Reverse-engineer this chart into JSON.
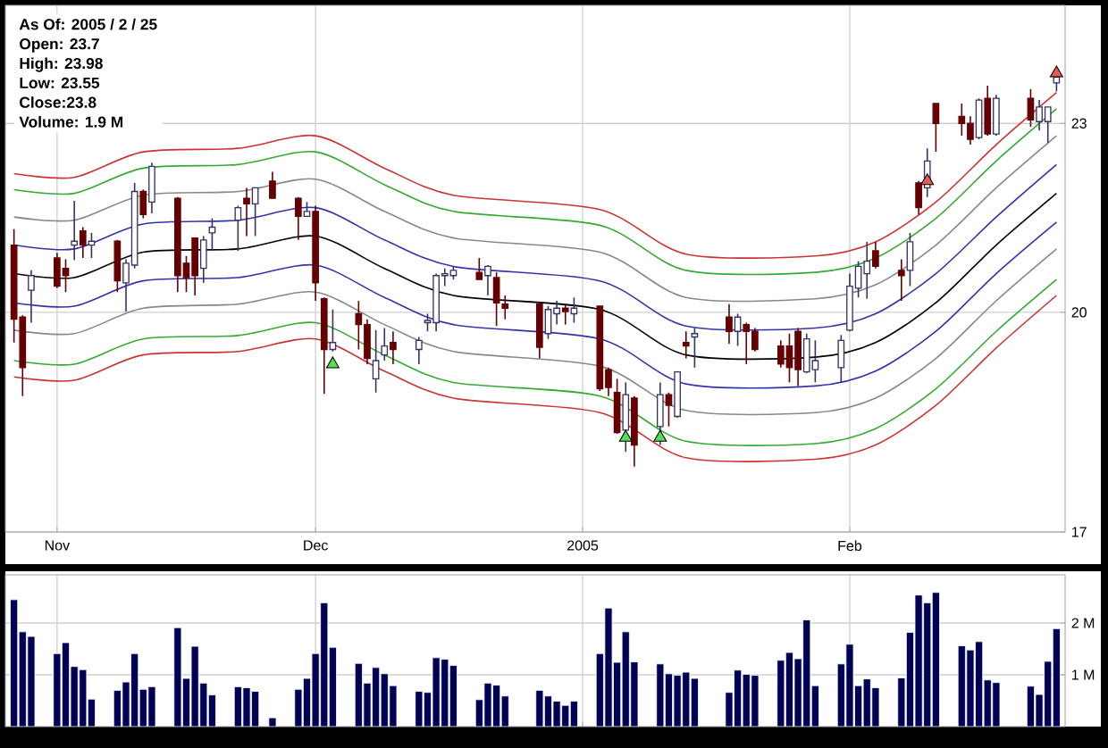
{
  "chart_data": [
    {
      "type": "candlestick",
      "x": [
        "2004-10-27",
        "2004-10-28",
        "2004-10-29",
        "2004-11-01",
        "2004-11-02",
        "2004-11-03",
        "2004-11-04",
        "2004-11-05",
        "2004-11-08",
        "2004-11-09",
        "2004-11-10",
        "2004-11-11",
        "2004-11-12",
        "2004-11-15",
        "2004-11-16",
        "2004-11-17",
        "2004-11-18",
        "2004-11-19",
        "2004-11-22",
        "2004-11-23",
        "2004-11-24",
        "2004-11-26",
        "2004-11-29",
        "2004-11-30",
        "2004-12-01",
        "2004-12-02",
        "2004-12-03",
        "2004-12-06",
        "2004-12-07",
        "2004-12-08",
        "2004-12-09",
        "2004-12-10",
        "2004-12-13",
        "2004-12-14",
        "2004-12-15",
        "2004-12-16",
        "2004-12-17",
        "2004-12-20",
        "2004-12-21",
        "2004-12-22",
        "2004-12-23",
        "2004-12-27",
        "2004-12-28",
        "2004-12-29",
        "2004-12-30",
        "2004-12-31",
        "2005-01-03",
        "2005-01-04",
        "2005-01-05",
        "2005-01-06",
        "2005-01-07",
        "2005-01-10",
        "2005-01-11",
        "2005-01-12",
        "2005-01-13",
        "2005-01-14",
        "2005-01-18",
        "2005-01-19",
        "2005-01-20",
        "2005-01-21",
        "2005-01-24",
        "2005-01-25",
        "2005-01-26",
        "2005-01-27",
        "2005-01-28",
        "2005-01-31",
        "2005-02-01",
        "2005-02-02",
        "2005-02-03",
        "2005-02-04",
        "2005-02-07",
        "2005-02-08",
        "2005-02-09",
        "2005-02-10",
        "2005-02-11",
        "2005-02-14",
        "2005-02-15",
        "2005-02-16",
        "2005-02-17",
        "2005-02-18",
        "2005-02-22",
        "2005-02-23",
        "2005-02-24",
        "2005-02-25"
      ],
      "ohlc": [
        [
          21.02,
          21.27,
          19.56,
          19.9
        ],
        [
          19.93,
          19.96,
          18.8,
          19.2
        ],
        [
          20.33,
          20.63,
          19.85,
          20.55
        ],
        [
          20.82,
          20.9,
          20.36,
          20.39
        ],
        [
          20.66,
          20.8,
          20.3,
          20.55
        ],
        [
          21.02,
          21.72,
          20.79,
          21.08
        ],
        [
          21.24,
          21.3,
          20.82,
          21.02
        ],
        [
          21.02,
          21.21,
          20.82,
          21.08
        ],
        [
          21.08,
          21.1,
          20.3,
          20.47
        ],
        [
          20.44,
          20.8,
          20.01,
          20.74
        ],
        [
          20.71,
          22.01,
          20.66,
          21.87
        ],
        [
          21.87,
          21.9,
          21.44,
          21.5
        ],
        [
          21.7,
          22.34,
          21.52,
          22.28
        ],
        [
          21.76,
          21.78,
          20.3,
          20.55
        ],
        [
          20.74,
          20.85,
          20.3,
          20.52
        ],
        [
          21.13,
          21.13,
          20.25,
          20.55
        ],
        [
          20.66,
          21.16,
          20.44,
          21.1
        ],
        [
          21.21,
          21.44,
          20.93,
          21.3
        ],
        [
          21.41,
          21.64,
          20.93,
          21.61
        ],
        [
          21.76,
          21.93,
          21.16,
          21.67
        ],
        [
          21.67,
          21.93,
          21.16,
          21.93
        ],
        [
          22.04,
          22.19,
          21.76,
          21.76
        ],
        [
          21.76,
          21.78,
          21.1,
          21.47
        ],
        [
          21.47,
          21.7,
          21.47,
          21.55
        ],
        [
          21.55,
          21.64,
          20.17,
          20.44
        ],
        [
          20.2,
          20.22,
          18.83,
          19.46
        ],
        [
          19.46,
          20.04,
          19.43,
          19.56
        ],
        [
          19.98,
          20.17,
          19.46,
          19.82
        ],
        [
          19.82,
          19.9,
          19.25,
          19.33
        ],
        [
          19.04,
          19.74,
          18.85,
          19.3
        ],
        [
          19.38,
          19.77,
          19.3,
          19.51
        ],
        [
          19.56,
          19.72,
          19.25,
          19.46
        ],
        [
          19.46,
          19.64,
          19.25,
          19.59
        ],
        [
          19.85,
          19.98,
          19.72,
          19.88
        ],
        [
          19.85,
          20.58,
          19.72,
          20.55
        ],
        [
          20.55,
          20.66,
          20.39,
          20.58
        ],
        [
          20.55,
          20.69,
          20.49,
          20.63
        ],
        [
          20.6,
          20.82,
          20.49,
          20.49
        ],
        [
          20.55,
          20.71,
          20.25,
          20.69
        ],
        [
          20.52,
          20.6,
          19.8,
          20.14
        ],
        [
          20.12,
          20.25,
          19.9,
          20.06
        ],
        [
          20.12,
          20.14,
          19.33,
          19.49
        ],
        [
          19.69,
          20.09,
          19.61,
          20.04
        ],
        [
          19.98,
          20.17,
          19.82,
          20.06
        ],
        [
          20.06,
          20.12,
          19.82,
          20.01
        ],
        [
          19.98,
          20.22,
          19.85,
          20.06
        ],
        [
          20.09,
          20.09,
          18.87,
          18.9
        ],
        [
          19.17,
          19.2,
          18.8,
          18.92
        ],
        [
          18.85,
          19.04,
          18.28,
          18.3
        ],
        [
          18.33,
          18.99,
          18.04,
          18.82
        ],
        [
          18.77,
          18.8,
          17.84,
          18.13
        ],
        [
          18.38,
          18.99,
          18.13,
          18.82
        ],
        [
          18.82,
          18.85,
          18.38,
          18.67
        ],
        [
          18.52,
          19.14,
          18.5,
          19.14
        ],
        [
          19.56,
          19.72,
          19.33,
          19.51
        ],
        [
          19.64,
          19.77,
          19.2,
          19.69
        ],
        [
          19.93,
          20.12,
          19.54,
          19.72
        ],
        [
          19.72,
          19.98,
          19.51,
          19.93
        ],
        [
          19.82,
          19.85,
          19.25,
          19.72
        ],
        [
          19.72,
          19.77,
          19.43,
          19.46
        ],
        [
          19.51,
          19.59,
          19.2,
          19.25
        ],
        [
          19.51,
          19.69,
          18.99,
          19.2
        ],
        [
          19.72,
          19.77,
          18.94,
          19.17
        ],
        [
          19.14,
          19.69,
          19.12,
          19.61
        ],
        [
          19.17,
          19.59,
          18.99,
          19.3
        ],
        [
          19.2,
          19.67,
          18.99,
          19.59
        ],
        [
          19.74,
          20.58,
          19.72,
          20.39
        ],
        [
          20.36,
          20.77,
          20.22,
          20.69
        ],
        [
          20.58,
          21.07,
          20.2,
          20.77
        ],
        [
          20.93,
          21.07,
          20.66,
          20.69
        ],
        [
          20.63,
          20.8,
          20.17,
          20.55
        ],
        [
          20.63,
          21.21,
          20.39,
          21.07
        ],
        [
          22.01,
          22.04,
          21.5,
          21.61
        ],
        [
          21.93,
          22.58,
          21.78,
          22.37
        ],
        [
          23.34,
          23.34,
          22.52,
          23.0
        ],
        [
          23.12,
          23.34,
          22.79,
          23.0
        ],
        [
          23.0,
          23.12,
          22.64,
          22.73
        ],
        [
          22.76,
          23.43,
          22.73,
          23.4
        ],
        [
          23.43,
          23.65,
          22.79,
          22.82
        ],
        [
          22.82,
          23.49,
          22.79,
          23.43
        ],
        [
          23.43,
          23.59,
          22.94,
          23.06
        ],
        [
          23.03,
          23.4,
          22.88,
          23.28
        ],
        [
          23.03,
          23.28,
          22.67,
          23.28
        ],
        [
          23.7,
          23.98,
          23.55,
          23.8
        ]
      ],
      "series": [
        {
          "type": "line",
          "color": "#cc3333",
          "x": [
            "2004-10-27",
            "2004-11-03",
            "2004-11-11",
            "2004-11-22",
            "2004-12-01",
            "2004-12-09",
            "2004-12-17",
            "2005-01-03",
            "2005-01-13",
            "2005-01-28",
            "2005-02-04",
            "2005-02-11",
            "2005-02-18",
            "2005-02-25"
          ],
          "values": [
            22.16,
            22.1,
            22.52,
            22.58,
            22.79,
            22.25,
            21.81,
            21.58,
            20.88,
            20.85,
            21.07,
            21.7,
            22.64,
            23.53
          ]
        },
        {
          "type": "line",
          "color": "#33aa33",
          "x": [
            "2004-10-27",
            "2004-11-03",
            "2004-11-11",
            "2004-11-22",
            "2004-12-01",
            "2004-12-09",
            "2004-12-17",
            "2005-01-03",
            "2005-01-13",
            "2005-01-28",
            "2005-02-04",
            "2005-02-11",
            "2005-02-18",
            "2005-02-25"
          ],
          "values": [
            21.9,
            21.84,
            22.25,
            22.31,
            22.52,
            21.98,
            21.55,
            21.33,
            20.63,
            20.6,
            20.82,
            21.44,
            22.37,
            23.25
          ]
        },
        {
          "type": "line",
          "color": "#888888",
          "x": [
            "2004-10-27",
            "2004-11-03",
            "2004-11-11",
            "2004-11-22",
            "2004-12-01",
            "2004-12-09",
            "2004-12-17",
            "2005-01-03",
            "2005-01-13",
            "2005-01-28",
            "2005-02-04",
            "2005-02-11",
            "2005-02-18",
            "2005-02-25"
          ],
          "values": [
            21.46,
            21.41,
            21.81,
            21.87,
            22.07,
            21.55,
            21.13,
            20.91,
            20.22,
            20.2,
            20.41,
            21.02,
            21.93,
            22.79
          ]
        },
        {
          "type": "line",
          "color": "#3333aa",
          "x": [
            "2004-10-27",
            "2004-11-03",
            "2004-11-11",
            "2004-11-22",
            "2004-12-01",
            "2004-12-09",
            "2004-12-17",
            "2005-01-03",
            "2005-01-13",
            "2005-01-28",
            "2005-02-04",
            "2005-02-11",
            "2005-02-18",
            "2005-02-25"
          ],
          "values": [
            21.02,
            20.96,
            21.35,
            21.41,
            21.61,
            21.1,
            20.69,
            20.47,
            19.8,
            19.77,
            19.98,
            20.58,
            21.46,
            22.31
          ]
        },
        {
          "type": "line",
          "color": "#000000",
          "x": [
            "2004-10-27",
            "2004-11-03",
            "2004-11-11",
            "2004-11-22",
            "2004-12-01",
            "2004-12-09",
            "2004-12-17",
            "2005-01-03",
            "2005-01-13",
            "2005-01-28",
            "2005-02-04",
            "2005-02-11",
            "2005-02-18",
            "2005-02-25"
          ],
          "values": [
            20.58,
            20.52,
            20.91,
            20.96,
            21.16,
            20.66,
            20.25,
            20.04,
            19.38,
            19.35,
            19.56,
            20.14,
            21.02,
            21.84
          ]
        },
        {
          "type": "line",
          "color": "#3333aa",
          "x": [
            "2004-10-27",
            "2004-11-03",
            "2004-11-11",
            "2004-11-22",
            "2004-12-01",
            "2004-12-09",
            "2004-12-17",
            "2005-01-03",
            "2005-01-13",
            "2005-01-28",
            "2005-02-04",
            "2005-02-11",
            "2005-02-18",
            "2005-02-25"
          ],
          "values": [
            20.14,
            20.09,
            20.47,
            20.52,
            20.71,
            20.22,
            19.82,
            19.61,
            18.97,
            18.94,
            19.15,
            19.72,
            20.58,
            21.38
          ]
        },
        {
          "type": "line",
          "color": "#888888",
          "x": [
            "2004-10-27",
            "2004-11-03",
            "2004-11-11",
            "2004-11-22",
            "2004-12-01",
            "2004-12-09",
            "2004-12-17",
            "2005-01-03",
            "2005-01-13",
            "2005-01-28",
            "2005-02-04",
            "2005-02-11",
            "2005-02-18",
            "2005-02-25"
          ],
          "values": [
            19.74,
            19.69,
            20.06,
            20.12,
            20.3,
            19.82,
            19.43,
            19.22,
            18.6,
            18.57,
            18.77,
            19.33,
            20.17,
            20.96
          ]
        },
        {
          "type": "line",
          "color": "#33aa33",
          "x": [
            "2004-10-27",
            "2004-11-03",
            "2004-11-11",
            "2004-11-22",
            "2004-12-01",
            "2004-12-09",
            "2004-12-17",
            "2005-01-03",
            "2005-01-13",
            "2005-01-28",
            "2005-02-04",
            "2005-02-11",
            "2005-02-18",
            "2005-02-25"
          ],
          "values": [
            19.3,
            19.25,
            19.61,
            19.66,
            19.85,
            19.38,
            18.99,
            18.8,
            18.18,
            18.15,
            18.35,
            18.9,
            19.72,
            20.49
          ]
        },
        {
          "type": "line",
          "color": "#cc3333",
          "x": [
            "2004-10-27",
            "2004-11-03",
            "2004-11-11",
            "2004-11-22",
            "2004-12-01",
            "2004-12-09",
            "2004-12-17",
            "2005-01-03",
            "2005-01-13",
            "2005-01-28",
            "2005-02-04",
            "2005-02-11",
            "2005-02-18",
            "2005-02-25"
          ],
          "values": [
            19.07,
            19.02,
            19.38,
            19.43,
            19.61,
            19.15,
            18.77,
            18.57,
            17.96,
            17.94,
            18.13,
            18.67,
            19.48,
            20.25
          ]
        },
        {
          "type": "scatter",
          "marker": "triangle",
          "color": "#55dd55",
          "x": [
            "2004-12-03",
            "2005-01-06",
            "2005-01-10"
          ],
          "values": [
            19.25,
            18.23,
            18.23
          ]
        },
        {
          "type": "scatter",
          "marker": "triangle",
          "color": "#ee5555",
          "x": [
            "2005-02-10",
            "2005-02-25"
          ],
          "values": [
            22.04,
            23.87
          ]
        }
      ],
      "xlim": [
        "2004-10-26",
        "2005-02-26"
      ],
      "xticks": [
        {
          "value": "2004-11-01",
          "label": "Nov"
        },
        {
          "value": "2004-12-01",
          "label": "Dec"
        },
        {
          "value": "2005-01-01",
          "label": "2005"
        },
        {
          "value": "2005-02-01",
          "label": "Feb"
        }
      ],
      "ylim": [
        17,
        25.1
      ],
      "yticks": [
        17,
        20,
        23
      ],
      "log": "y",
      "grid": true,
      "annotations": [
        "As Of: 2005 / 2 / 25",
        "Open: 23.7",
        "High: 23.98",
        "Low: 23.55",
        "Close:23.8",
        "Volume: 1.9 M"
      ]
    },
    {
      "type": "bar",
      "x": [
        "2004-10-27",
        "2004-10-28",
        "2004-10-29",
        "2004-11-01",
        "2004-11-02",
        "2004-11-03",
        "2004-11-04",
        "2004-11-05",
        "2004-11-08",
        "2004-11-09",
        "2004-11-10",
        "2004-11-11",
        "2004-11-12",
        "2004-11-15",
        "2004-11-16",
        "2004-11-17",
        "2004-11-18",
        "2004-11-19",
        "2004-11-22",
        "2004-11-23",
        "2004-11-24",
        "2004-11-26",
        "2004-11-29",
        "2004-11-30",
        "2004-12-01",
        "2004-12-02",
        "2004-12-03",
        "2004-12-06",
        "2004-12-07",
        "2004-12-08",
        "2004-12-09",
        "2004-12-10",
        "2004-12-13",
        "2004-12-14",
        "2004-12-15",
        "2004-12-16",
        "2004-12-17",
        "2004-12-20",
        "2004-12-21",
        "2004-12-22",
        "2004-12-23",
        "2004-12-27",
        "2004-12-28",
        "2004-12-29",
        "2004-12-30",
        "2004-12-31",
        "2005-01-03",
        "2005-01-04",
        "2005-01-05",
        "2005-01-06",
        "2005-01-07",
        "2005-01-10",
        "2005-01-11",
        "2005-01-12",
        "2005-01-13",
        "2005-01-14",
        "2005-01-18",
        "2005-01-19",
        "2005-01-20",
        "2005-01-21",
        "2005-01-24",
        "2005-01-25",
        "2005-01-26",
        "2005-01-27",
        "2005-01-28",
        "2005-01-31",
        "2005-02-01",
        "2005-02-02",
        "2005-02-03",
        "2005-02-04",
        "2005-02-07",
        "2005-02-08",
        "2005-02-09",
        "2005-02-10",
        "2005-02-11",
        "2005-02-14",
        "2005-02-15",
        "2005-02-16",
        "2005-02-17",
        "2005-02-18",
        "2005-02-22",
        "2005-02-23",
        "2005-02-24",
        "2005-02-25"
      ],
      "values": [
        2.45,
        1.83,
        1.74,
        1.41,
        1.62,
        1.16,
        1.1,
        0.53,
        0.7,
        0.86,
        1.41,
        0.72,
        0.77,
        1.91,
        0.93,
        1.55,
        0.84,
        0.61,
        0.77,
        0.75,
        0.68,
        0.17,
        0.72,
        0.93,
        1.41,
        2.39,
        1.53,
        1.22,
        0.84,
        1.14,
        1.02,
        0.79,
        0.68,
        0.66,
        1.33,
        1.3,
        1.18,
        0.52,
        0.84,
        0.8,
        0.59,
        0.7,
        0.59,
        0.49,
        0.41,
        0.49,
        1.41,
        2.29,
        1.24,
        1.83,
        1.25,
        1.21,
        1.02,
        0.99,
        1.05,
        0.93,
        0.66,
        1.09,
        1.01,
        0.99,
        1.28,
        1.43,
        1.31,
        2.06,
        0.79,
        1.21,
        1.59,
        0.79,
        0.92,
        0.75,
        0.94,
        1.82,
        2.54,
        2.39,
        2.59,
        1.56,
        1.48,
        1.64,
        0.9,
        0.85,
        0.78,
        0.62,
        1.26,
        1.89
      ],
      "color": "#000055",
      "xlim": [
        "2004-10-26",
        "2005-02-26"
      ],
      "xticks": [
        {
          "value": "2004-11-01",
          "label": null
        },
        {
          "value": "2004-12-01",
          "label": null
        },
        {
          "value": "2005-01-01",
          "label": null
        },
        {
          "value": "2005-02-01",
          "label": null
        }
      ],
      "ylim": [
        0,
        2.93
      ],
      "yticks": [
        {
          "value": 1,
          "label": "1 M"
        },
        {
          "value": 2,
          "label": "2 M"
        }
      ],
      "grid": true,
      "tick_labels": "y"
    }
  ]
}
